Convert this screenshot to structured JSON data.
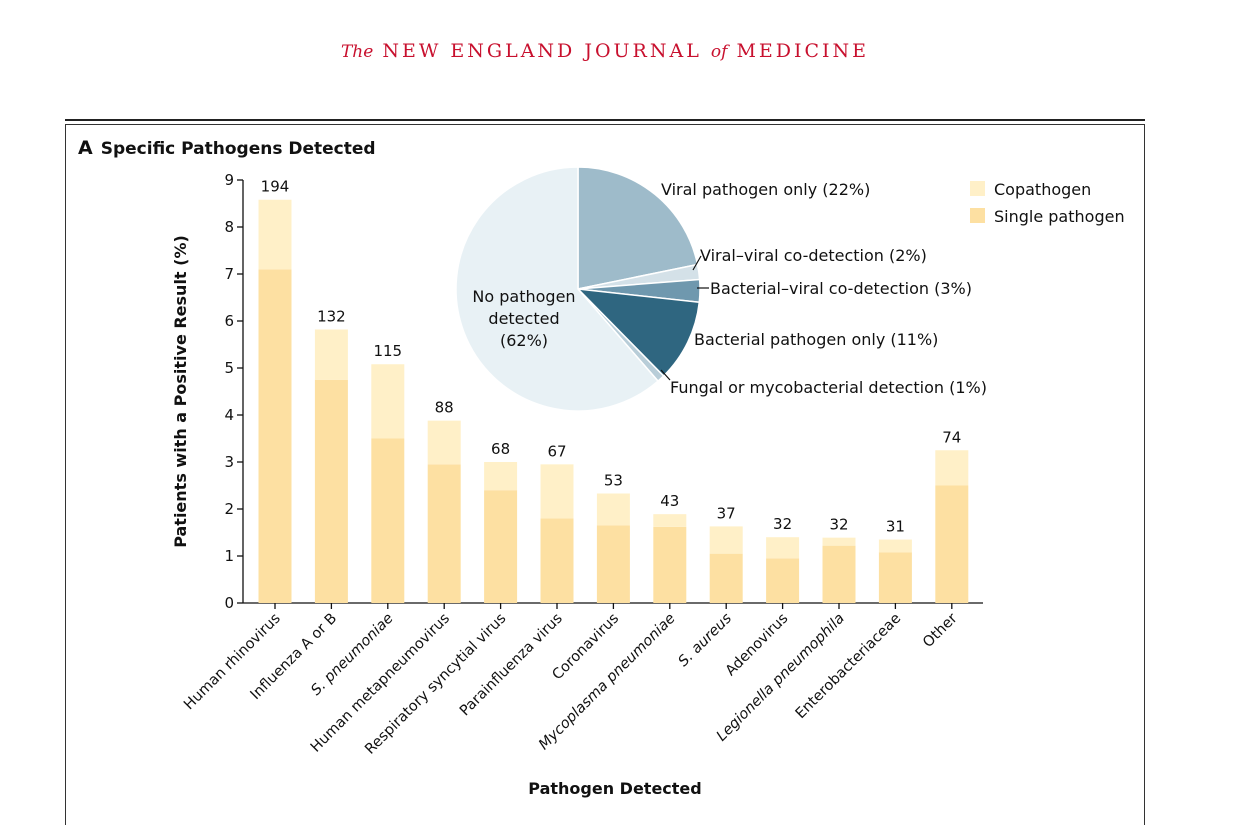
{
  "journal": {
    "the": "The",
    "name_part1": "NEW ENGLAND JOURNAL",
    "of": "of",
    "name_part2": "MEDICINE"
  },
  "panel": {
    "letter": "A",
    "title": "Specific Pathogens Detected"
  },
  "colors": {
    "single": "#fde0a2",
    "copathogen": "#fff0c8",
    "pie_none": "#e8f1f5",
    "pie_viral": "#9ebbca",
    "pie_viral_viral": "#d4e1e8",
    "pie_bact_viral": "#6f98ae",
    "pie_bacterial": "#2f6680",
    "pie_fungal": "#b8cdd8",
    "journal_red": "#c8102e"
  },
  "chart_data": [
    {
      "type": "bar",
      "stacked": true,
      "xlabel": "Pathogen Detected",
      "ylabel": "Patients with a Positive Result (%)",
      "ylim": [
        0,
        9
      ],
      "yticks": [
        "0",
        "1",
        "2",
        "3",
        "4",
        "5",
        "6",
        "7",
        "8",
        "9"
      ],
      "categories": [
        "Human rhinovirus",
        "Influenza A or B",
        "S. pneumoniae",
        "Human metapneumovirus",
        "Respiratory syncytial virus",
        "Parainfluenza virus",
        "Coronavirus",
        "Mycoplasma pneumoniae",
        "S. aureus",
        "Adenovirus",
        "Legionella pneumophila",
        "Enterobacteriaceae",
        "Other"
      ],
      "italic": [
        false,
        false,
        true,
        false,
        false,
        false,
        false,
        true,
        true,
        false,
        true,
        false,
        false
      ],
      "series": [
        {
          "name": "Single pathogen",
          "values": [
            7.1,
            4.75,
            3.5,
            2.95,
            2.4,
            1.8,
            1.65,
            1.62,
            1.05,
            0.95,
            1.22,
            1.08,
            2.5
          ]
        },
        {
          "name": "Copathogen",
          "values": [
            1.48,
            1.07,
            1.58,
            0.93,
            0.6,
            1.15,
            0.68,
            0.27,
            0.58,
            0.45,
            0.17,
            0.27,
            0.75
          ]
        }
      ],
      "totals_percent": [
        8.58,
        5.82,
        5.08,
        3.88,
        3.0,
        2.95,
        2.33,
        1.89,
        1.63,
        1.4,
        1.39,
        1.35,
        3.25
      ],
      "counts": [
        "194",
        "132",
        "115",
        "88",
        "68",
        "67",
        "53",
        "43",
        "37",
        "32",
        "32",
        "31",
        "74"
      ],
      "legend": {
        "position": "top-right",
        "items": [
          {
            "label": "Copathogen",
            "color_key": "copathogen"
          },
          {
            "label": "Single pathogen",
            "color_key": "single"
          }
        ]
      }
    },
    {
      "type": "pie",
      "slices": [
        {
          "label": "Viral pathogen only (22%)",
          "value": 22,
          "color_key": "pie_viral"
        },
        {
          "label": "Viral–viral co-detection (2%)",
          "value": 2,
          "color_key": "pie_viral_viral"
        },
        {
          "label": "Bacterial–viral co-detection (3%)",
          "value": 3,
          "color_key": "pie_bact_viral"
        },
        {
          "label": "Bacterial pathogen only (11%)",
          "value": 11,
          "color_key": "pie_bacterial"
        },
        {
          "label": "Fungal or mycobacterial detection (1%)",
          "value": 1,
          "color_key": "pie_fungal"
        },
        {
          "label": "No pathogen detected (62%)",
          "value": 62,
          "color_key": "pie_none"
        }
      ],
      "center_label_lines": [
        "No pathogen",
        "detected",
        "(62%)"
      ]
    }
  ]
}
